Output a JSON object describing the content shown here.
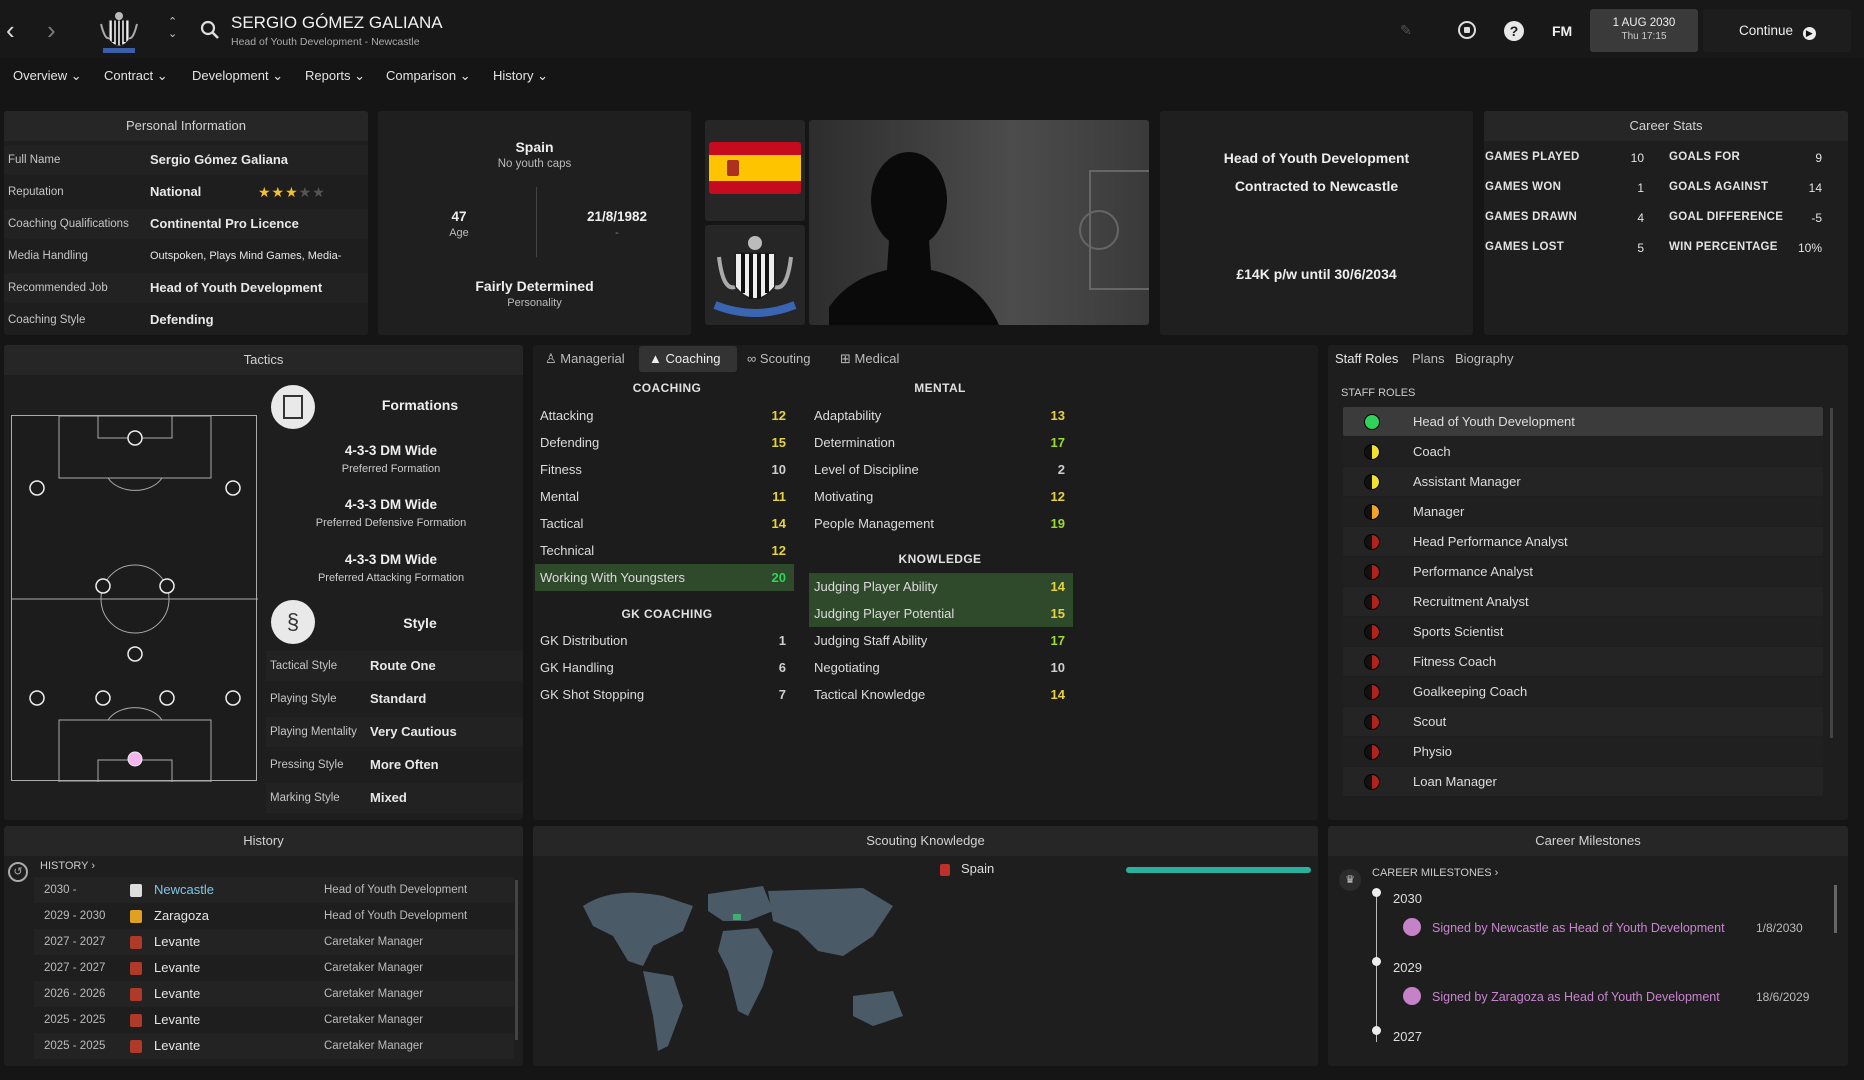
{
  "header": {
    "name": "SERGIO GÓMEZ GALIANA",
    "subtitle": "Head of Youth Development - Newcastle",
    "date": "1 AUG 2030",
    "time": "Thu 17:15",
    "continue": "Continue",
    "fm": "FM"
  },
  "menu": [
    "Overview",
    "Contract",
    "Development",
    "Reports",
    "Comparison",
    "History"
  ],
  "personal": {
    "title": "Personal Information",
    "rows": [
      {
        "label": "Full Name",
        "value": "Sergio Gómez Galiana"
      },
      {
        "label": "Reputation",
        "value": "National"
      },
      {
        "label": "Coaching Qualifications",
        "value": "Continental Pro Licence"
      },
      {
        "label": "Media Handling",
        "value": "Outspoken, Plays Mind Games, Media-friendly"
      },
      {
        "label": "Recommended Job",
        "value": "Head of Youth Development"
      },
      {
        "label": "Coaching Style",
        "value": "Defending"
      }
    ],
    "reputation_stars": 3,
    "reputation_max": 5
  },
  "bio": {
    "nation": "Spain",
    "caps": "No youth caps",
    "age": "47",
    "age_label": "Age",
    "dob": "21/8/1982",
    "dob_sub": "-",
    "personality": "Fairly Determined",
    "personality_label": "Personality"
  },
  "job": {
    "role": "Head of Youth Development",
    "contract": "Contracted to Newcastle",
    "wage": "£14K p/w until 30/6/2034"
  },
  "career_stats": {
    "title": "Career Stats",
    "left": [
      [
        "GAMES PLAYED",
        "10"
      ],
      [
        "GAMES WON",
        "1"
      ],
      [
        "GAMES DRAWN",
        "4"
      ],
      [
        "GAMES LOST",
        "5"
      ]
    ],
    "right": [
      [
        "GOALS FOR",
        "9"
      ],
      [
        "GOALS AGAINST",
        "14"
      ],
      [
        "GOAL DIFFERENCE",
        "-5"
      ],
      [
        "WIN PERCENTAGE",
        "10%"
      ]
    ]
  },
  "tactics": {
    "title": "Tactics",
    "formations_title": "Formations",
    "formations": [
      {
        "name": "4-3-3 DM Wide",
        "sub": "Preferred Formation"
      },
      {
        "name": "4-3-3 DM Wide",
        "sub": "Preferred Defensive Formation"
      },
      {
        "name": "4-3-3 DM Wide",
        "sub": "Preferred Attacking Formation"
      }
    ],
    "style_title": "Style",
    "style": [
      [
        "Tactical Style",
        "Route One"
      ],
      [
        "Playing Style",
        "Standard"
      ],
      [
        "Playing Mentality",
        "Very Cautious"
      ],
      [
        "Pressing Style",
        "More Often"
      ],
      [
        "Marking Style",
        "Mixed"
      ]
    ]
  },
  "attr_tabs": [
    "Managerial",
    "Coaching",
    "Scouting",
    "Medical"
  ],
  "coaching": {
    "title": "COACHING",
    "items": [
      [
        "Attacking",
        "12"
      ],
      [
        "Defending",
        "15"
      ],
      [
        "Fitness",
        "10"
      ],
      [
        "Mental",
        "11"
      ],
      [
        "Tactical",
        "14"
      ],
      [
        "Technical",
        "12"
      ],
      [
        "Working With Youngsters",
        "20"
      ]
    ]
  },
  "gk": {
    "title": "GK COACHING",
    "items": [
      [
        "GK Distribution",
        "1"
      ],
      [
        "GK Handling",
        "6"
      ],
      [
        "GK Shot Stopping",
        "7"
      ]
    ]
  },
  "mental": {
    "title": "MENTAL",
    "items": [
      [
        "Adaptability",
        "13"
      ],
      [
        "Determination",
        "17"
      ],
      [
        "Level of Discipline",
        "2"
      ],
      [
        "Motivating",
        "12"
      ],
      [
        "People Management",
        "19"
      ]
    ]
  },
  "knowledge": {
    "title": "KNOWLEDGE",
    "items": [
      [
        "Judging Player Ability",
        "14"
      ],
      [
        "Judging Player Potential",
        "15"
      ],
      [
        "Judging Staff Ability",
        "17"
      ],
      [
        "Negotiating",
        "10"
      ],
      [
        "Tactical Knowledge",
        "14"
      ]
    ]
  },
  "staff": {
    "tabs": [
      "Staff Roles",
      "Plans",
      "Biography"
    ],
    "title": "STAFF ROLES",
    "roles": [
      {
        "name": "Head of Youth Development",
        "color": "#2fd35a",
        "half": false
      },
      {
        "name": "Coach",
        "color": "#f1e02c",
        "half": true
      },
      {
        "name": "Assistant Manager",
        "color": "#f1e02c",
        "half": true
      },
      {
        "name": "Manager",
        "color": "#f0a424",
        "half": true
      },
      {
        "name": "Head Performance Analyst",
        "color": "#b1221c",
        "half": true
      },
      {
        "name": "Performance Analyst",
        "color": "#b1221c",
        "half": true
      },
      {
        "name": "Recruitment Analyst",
        "color": "#b1221c",
        "half": true
      },
      {
        "name": "Sports Scientist",
        "color": "#b1221c",
        "half": true
      },
      {
        "name": "Fitness Coach",
        "color": "#b1221c",
        "half": true
      },
      {
        "name": "Goalkeeping Coach",
        "color": "#b1221c",
        "half": true
      },
      {
        "name": "Scout",
        "color": "#b1221c",
        "half": true
      },
      {
        "name": "Physio",
        "color": "#b1221c",
        "half": true
      },
      {
        "name": "Loan Manager",
        "color": "#b1221c",
        "half": true
      }
    ]
  },
  "history": {
    "title": "History",
    "link": "HISTORY",
    "rows": [
      {
        "years": "2030 -",
        "club": "Newcastle",
        "role": "Head of Youth Development"
      },
      {
        "years": "2029 - 2030",
        "club": "Zaragoza",
        "role": "Head of Youth Development"
      },
      {
        "years": "2027 - 2027",
        "club": "Levante",
        "role": "Caretaker Manager"
      },
      {
        "years": "2027 - 2027",
        "club": "Levante",
        "role": "Caretaker Manager"
      },
      {
        "years": "2026 - 2026",
        "club": "Levante",
        "role": "Caretaker Manager"
      },
      {
        "years": "2025 - 2025",
        "club": "Levante",
        "role": "Caretaker Manager"
      },
      {
        "years": "2025 - 2025",
        "club": "Levante",
        "role": "Caretaker Manager"
      }
    ]
  },
  "scouting": {
    "title": "Scouting Knowledge",
    "nation": "Spain",
    "knowledge": 1.0
  },
  "milestones": {
    "title": "Career Milestones",
    "link": "CAREER MILESTONES",
    "years": [
      "2030",
      "2029",
      "2027"
    ],
    "items": [
      {
        "text": "Signed by Newcastle as Head of Youth Development",
        "date": "1/8/2030"
      },
      {
        "text": "Signed by Zaragoza as Head of Youth Development",
        "date": "18/6/2029"
      }
    ]
  }
}
